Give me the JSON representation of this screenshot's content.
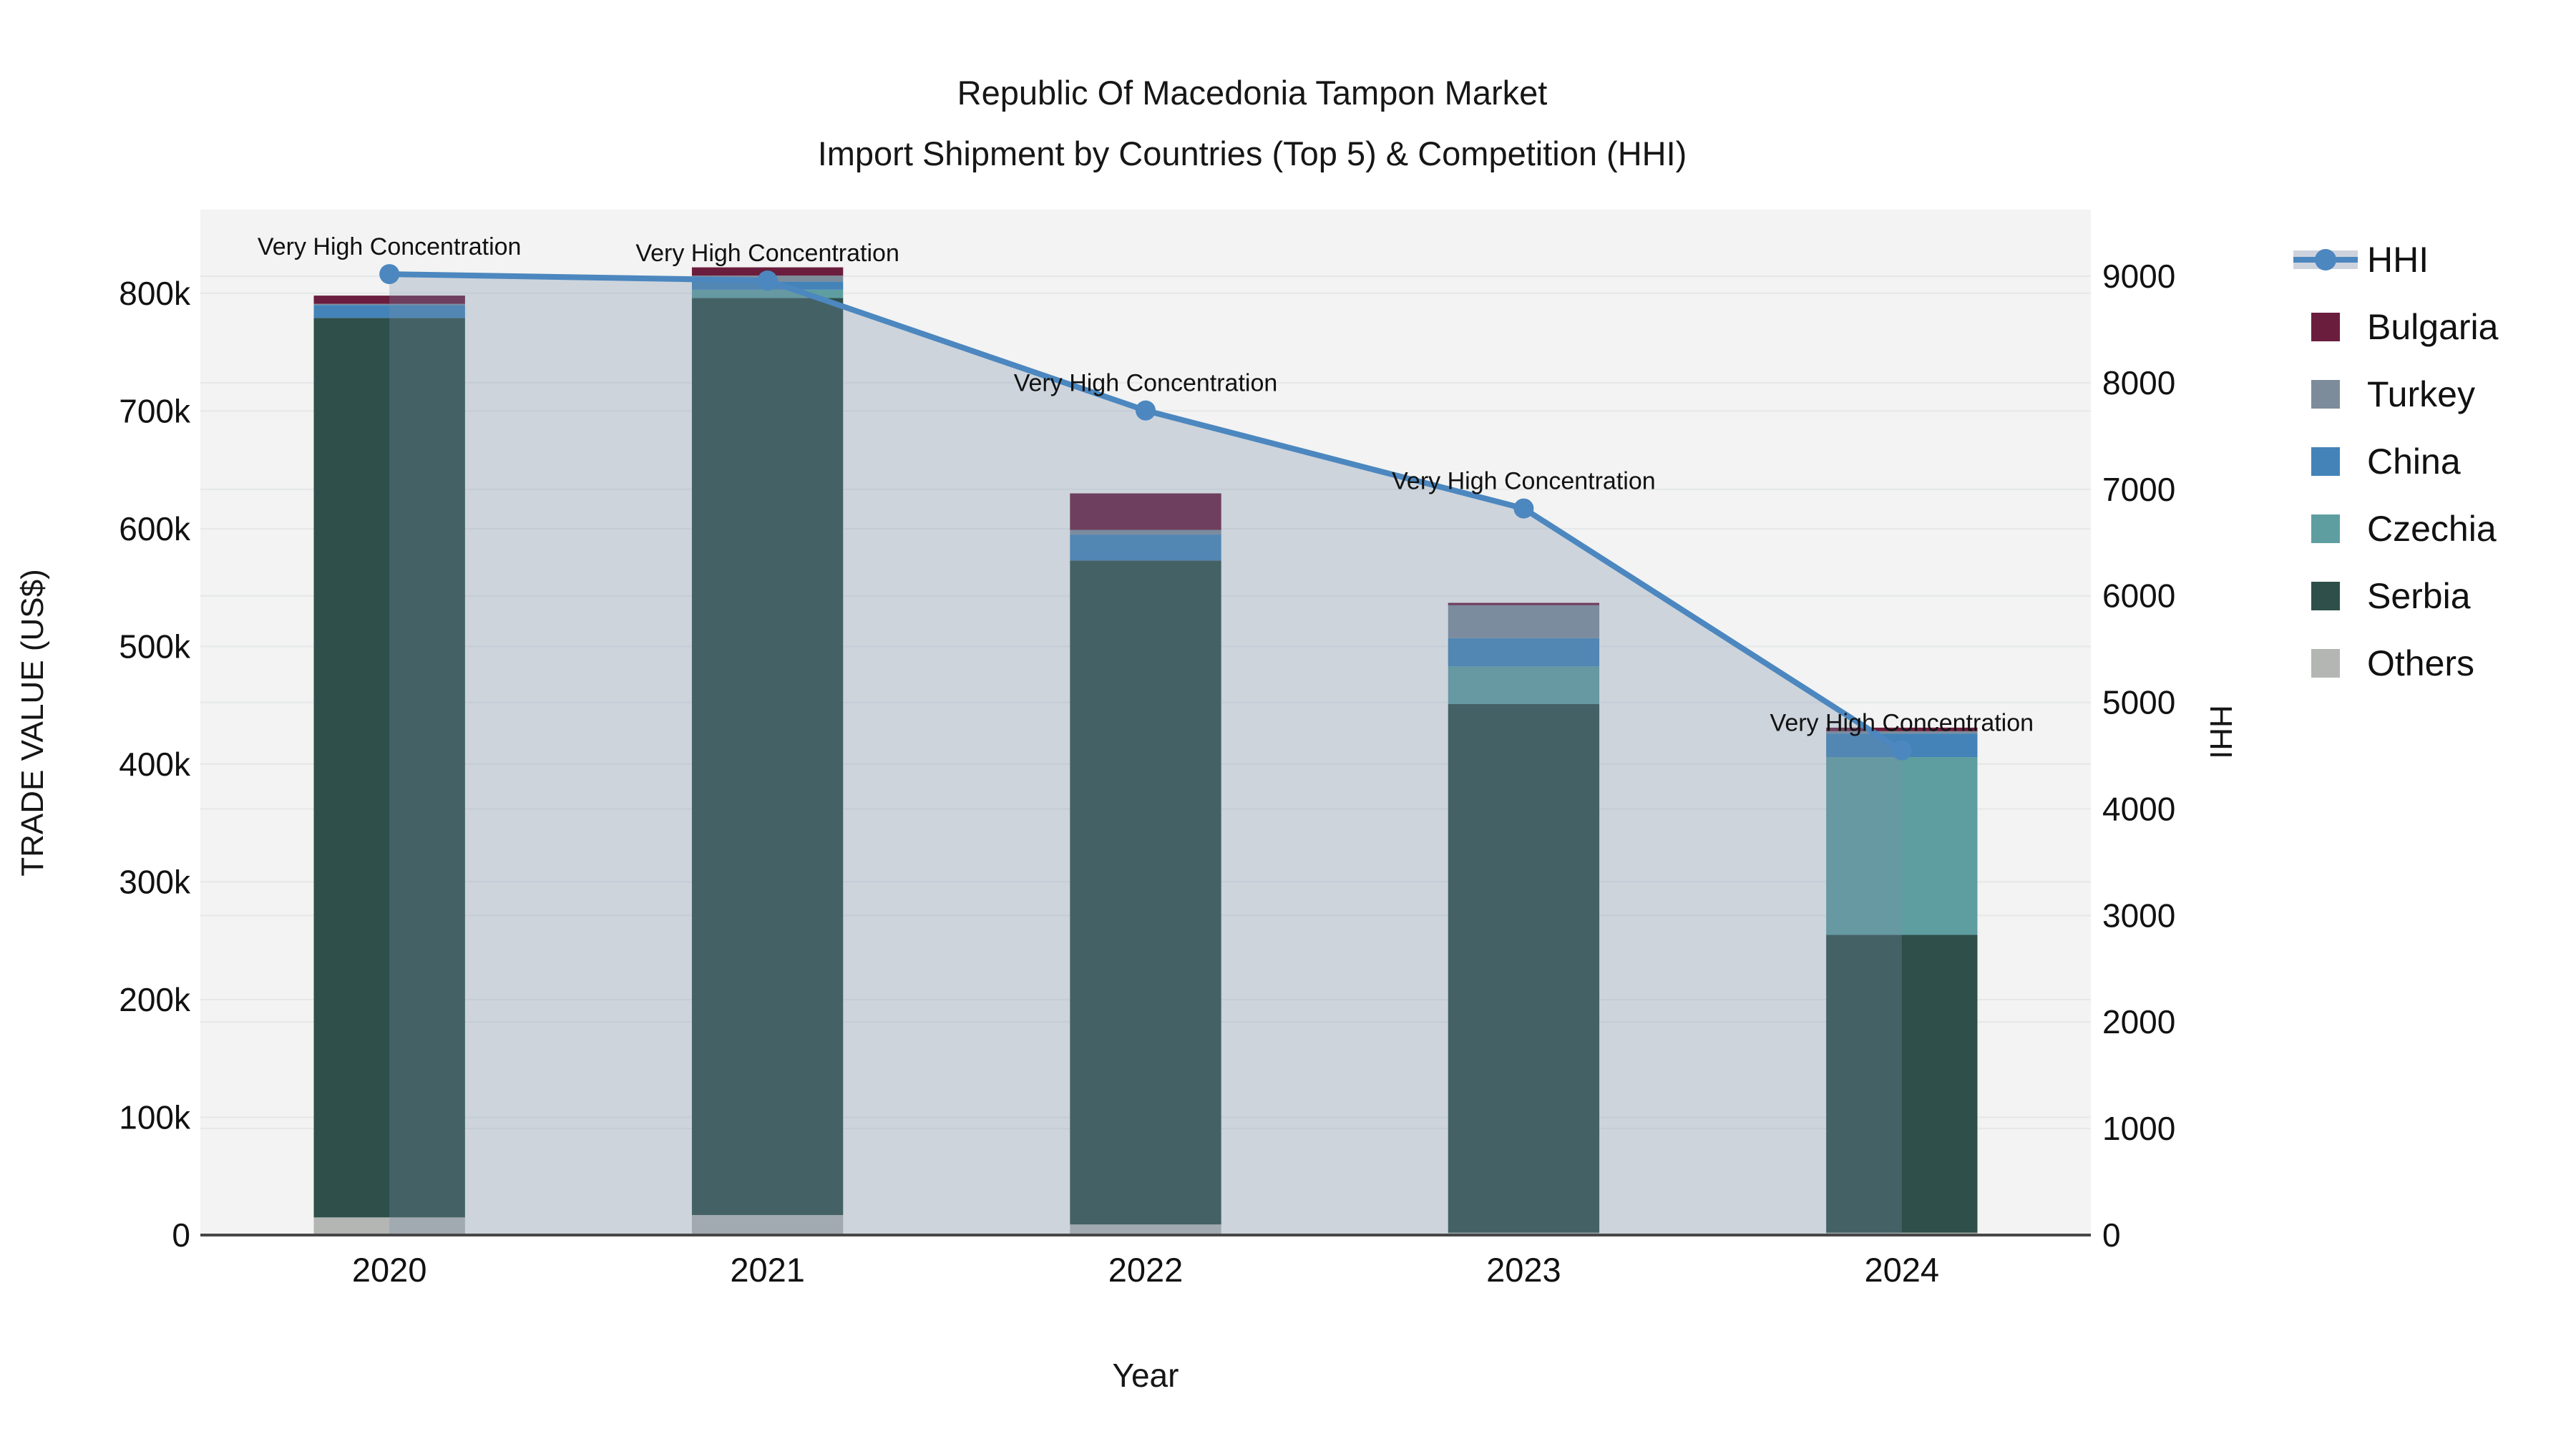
{
  "page": {
    "background": "#ffffff"
  },
  "title": {
    "line1": "Republic Of Macedonia Tampon Market",
    "line2": "Import Shipment by Countries (Top 5) & Competition (HHI)"
  },
  "axes": {
    "x_title": "Year",
    "y_left_title": "TRADE VALUE (US$)",
    "y_right_title": "HHI",
    "y_left_ticks": {
      "values": [
        0,
        100,
        200,
        300,
        400,
        500,
        600,
        700,
        800
      ],
      "labels": [
        "0",
        "100k",
        "200k",
        "300k",
        "400k",
        "500k",
        "600k",
        "700k",
        "800k"
      ]
    },
    "y_right_ticks": {
      "values": [
        0,
        1000,
        2000,
        3000,
        4000,
        5000,
        6000,
        7000,
        8000,
        9000
      ],
      "labels": [
        "0",
        "1000",
        "2000",
        "3000",
        "4000",
        "5000",
        "6000",
        "7000",
        "8000",
        "9000"
      ]
    }
  },
  "chart_data": {
    "type": "bar+line",
    "categories": [
      "2020",
      "2021",
      "2022",
      "2023",
      "2024"
    ],
    "bar_units": "thousand US$",
    "ylim_left": [
      0,
      871
    ],
    "ylim_right": [
      0,
      9625
    ],
    "grid": true,
    "legend_position": "right",
    "stack_order_note": "series listed bottom to top of stack",
    "series": [
      {
        "name": "Others",
        "color": "#b3b6b3",
        "values": [
          15,
          17,
          9,
          2,
          2
        ]
      },
      {
        "name": "Serbia",
        "color": "#2e4f4a",
        "values": [
          764,
          779,
          564,
          449,
          253
        ]
      },
      {
        "name": "Czechia",
        "color": "#5f9ea0",
        "values": [
          0,
          7,
          0,
          32,
          151
        ]
      },
      {
        "name": "China",
        "color": "#4383b8",
        "values": [
          11,
          7,
          22,
          24,
          20
        ]
      },
      {
        "name": "Turkey",
        "color": "#7d8c9b",
        "values": [
          1,
          5,
          4,
          28,
          2
        ]
      },
      {
        "name": "Bulgaria",
        "color": "#6b1d3e",
        "values": [
          7,
          7,
          31,
          2,
          3
        ]
      }
    ],
    "hhi": {
      "name": "HHI",
      "color": "#4c87bf",
      "area_fill": "rgba(120,144,170,0.30)",
      "values": [
        9020,
        8960,
        7740,
        6820,
        4550
      ]
    },
    "annotations": [
      "Very High Concentration",
      "Very High Concentration",
      "Very High Concentration",
      "Very High Concentration",
      "Very High Concentration"
    ],
    "plot_background": "#f2f3f2",
    "grid_color": "#e5e7e8",
    "axis_line_color": "#474747"
  },
  "legend": {
    "items": [
      {
        "label": "HHI",
        "type": "line",
        "color": "#4c87bf"
      },
      {
        "label": "Bulgaria",
        "type": "square",
        "color": "#6b1d3e"
      },
      {
        "label": "Turkey",
        "type": "square",
        "color": "#7d8c9b"
      },
      {
        "label": "China",
        "type": "square",
        "color": "#4383b8"
      },
      {
        "label": "Czechia",
        "type": "square",
        "color": "#5f9ea0"
      },
      {
        "label": "Serbia",
        "type": "square",
        "color": "#2e4f4a"
      },
      {
        "label": "Others",
        "type": "square",
        "color": "#b3b6b3"
      }
    ]
  }
}
